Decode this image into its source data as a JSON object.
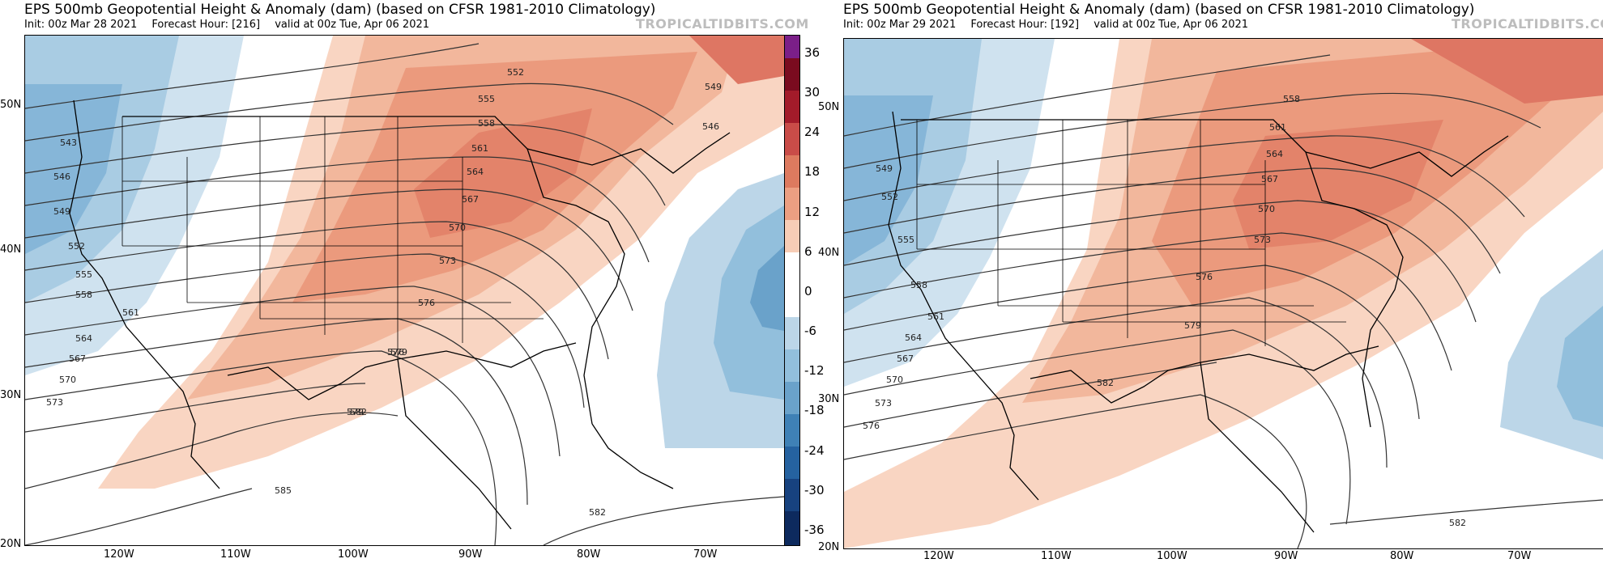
{
  "panels": [
    {
      "title": "EPS 500mb Geopotential Height & Anomaly (dam) (based on CFSR 1981-2010 Climatology)",
      "init": "Init: 00z Mar 28 2021",
      "forecast_hour": "Forecast Hour: [216]",
      "valid": "valid at 00z Tue, Apr 06 2021",
      "watermark": "TROPICALTIDBITS.COM",
      "lat_labels": [
        "50N",
        "40N",
        "30N",
        "20N"
      ],
      "lon_labels": [
        "120W",
        "110W",
        "100W",
        "90W",
        "80W",
        "70W"
      ],
      "contour_labels": [
        "543",
        "546",
        "549",
        "552",
        "555",
        "558",
        "561",
        "564",
        "567",
        "570",
        "573",
        "576",
        "579",
        "582",
        "585",
        "546",
        "549",
        "552",
        "555",
        "558",
        "561",
        "564",
        "567",
        "570",
        "573",
        "576",
        "579",
        "582"
      ]
    },
    {
      "title": "EPS 500mb Geopotential Height & Anomaly (dam) (based on CFSR 1981-2010 Climatology)",
      "init": "Init: 00z Mar 29 2021",
      "forecast_hour": "Forecast Hour: [192]",
      "valid": "valid at 00z Tue, Apr 06 2021",
      "watermark": "TROPICALTIDBITS.COM",
      "lat_labels": [
        "50N",
        "40N",
        "30N",
        "20N"
      ],
      "lon_labels": [
        "120W",
        "110W",
        "100W",
        "90W",
        "80W",
        "70W"
      ],
      "contour_labels": [
        "549",
        "552",
        "555",
        "558",
        "561",
        "564",
        "567",
        "570",
        "573",
        "576",
        "558",
        "561",
        "564",
        "567",
        "570",
        "573",
        "576",
        "579",
        "582",
        "582"
      ]
    }
  ],
  "colorbar": {
    "labels": [
      "36",
      "30",
      "24",
      "18",
      "12",
      "6",
      "0",
      "-6",
      "-12",
      "-18",
      "-24",
      "-30",
      "-36"
    ],
    "colors": [
      "#7b1f88",
      "#7a0b1f",
      "#a31b2a",
      "#c94c48",
      "#dd7a5f",
      "#ec9f82",
      "#f7cdb6",
      "#ffffff",
      "#ffffff",
      "#bcd6e8",
      "#92bfdc",
      "#6aa2ca",
      "#3f81b6",
      "#2562a0",
      "#17427f",
      "#0d2a5e"
    ]
  }
}
